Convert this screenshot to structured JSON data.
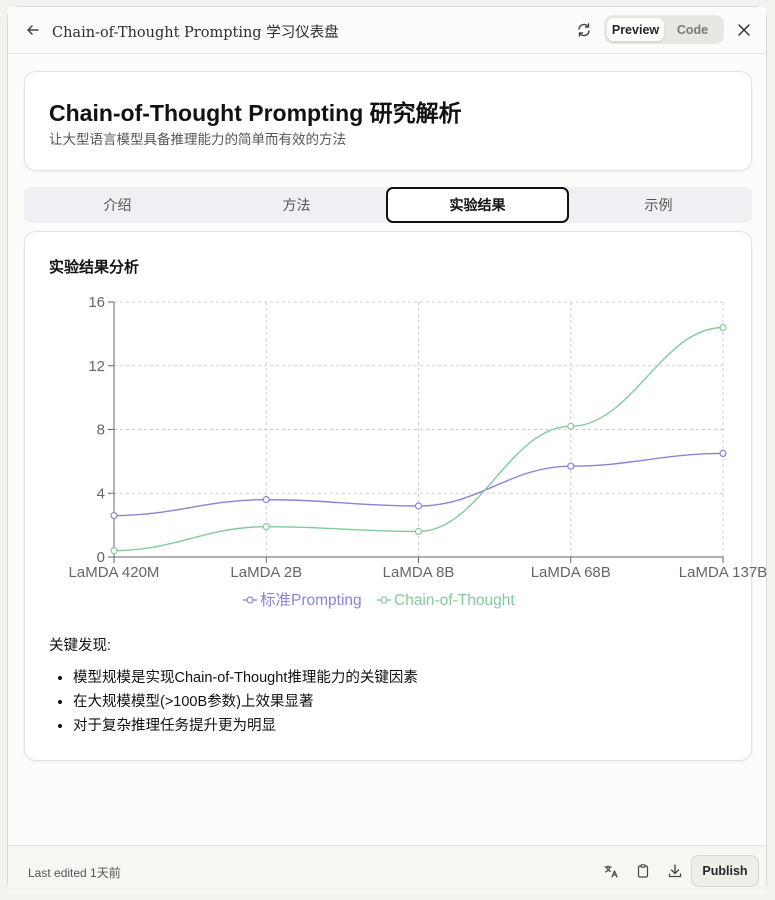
{
  "topbar": {
    "title": "Chain-of-Thought Prompting 学习仪表盘",
    "toggle": {
      "preview": "Preview",
      "code": "Code"
    },
    "icons": [
      "back-arrow-icon",
      "refresh-icon",
      "close-icon"
    ]
  },
  "header": {
    "title": "Chain-of-Thought Prompting 研究解析",
    "subtitle": "让大型语言模型具备推理能力的简单而有效的方法"
  },
  "tabs": [
    {
      "label": "介绍",
      "active": false
    },
    {
      "label": "方法",
      "active": false
    },
    {
      "label": "实验结果",
      "active": true
    },
    {
      "label": "示例",
      "active": false
    }
  ],
  "results": {
    "section_title": "实验结果分析",
    "findings_title": "关键发现:",
    "findings": [
      "模型规模是实现Chain-of-Thought推理能力的关键因素",
      "在大规模模型(>100B参数)上效果显著",
      "对于复杂推理任务提升更为明显"
    ]
  },
  "chart_data": {
    "type": "line",
    "categories": [
      "LaMDA 420M",
      "LaMDA 2B",
      "LaMDA 8B",
      "LaMDA 68B",
      "LaMDA 137B"
    ],
    "series": [
      {
        "name": "标准Prompting",
        "color": "#8884d8",
        "values": [
          2.6,
          3.6,
          3.2,
          5.7,
          6.5
        ]
      },
      {
        "name": "Chain-of-Thought",
        "color": "#82ca9d",
        "values": [
          0.4,
          1.9,
          1.6,
          8.2,
          14.4
        ]
      }
    ],
    "yticks": [
      0,
      4,
      8,
      12,
      16
    ],
    "ylim": [
      0,
      16
    ],
    "grid": true,
    "legend": "bottom"
  },
  "footer": {
    "last_edited": "Last edited 1天前",
    "publish": "Publish",
    "icons": [
      "translate-icon",
      "clipboard-icon",
      "download-icon"
    ]
  }
}
